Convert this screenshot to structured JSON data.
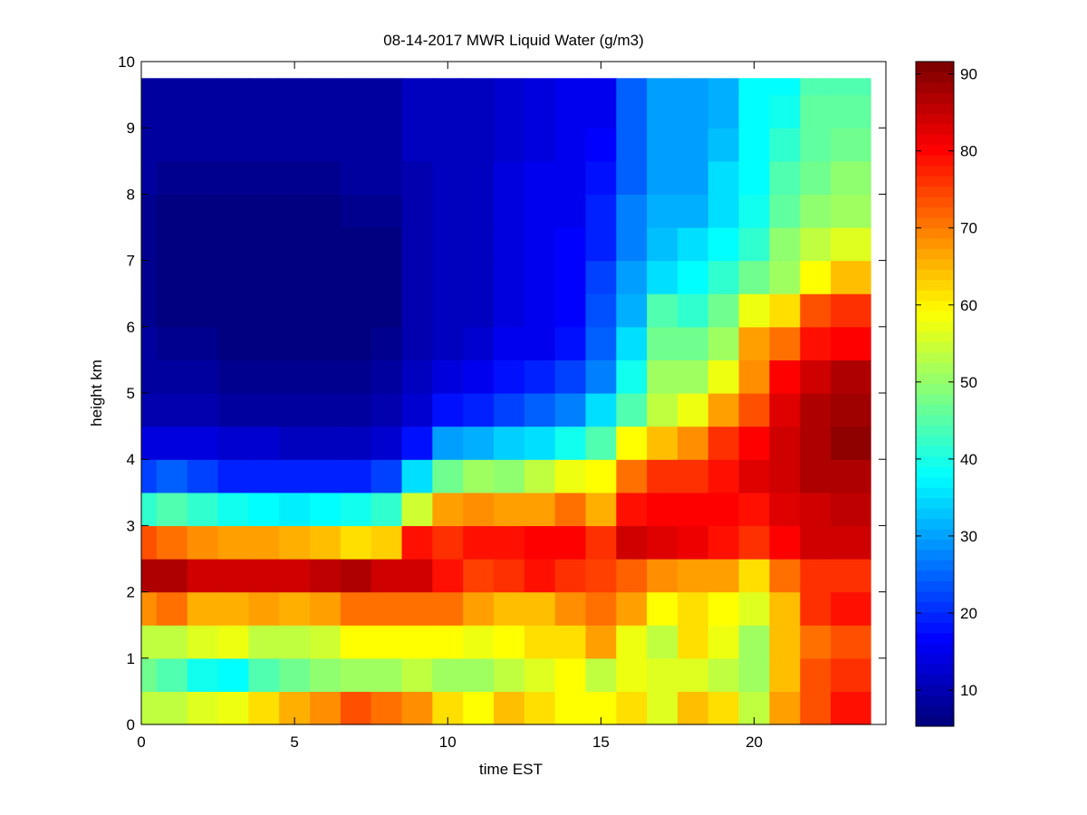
{
  "chart_data": {
    "type": "heatmap",
    "title": "08-14-2017 MWR Liquid Water (g/m3)",
    "xlabel": "time EST",
    "ylabel": "height km",
    "xlim": [
      0,
      24.3
    ],
    "ylim": [
      0,
      10
    ],
    "xticks": [
      0,
      5,
      10,
      15,
      20
    ],
    "yticks": [
      0,
      1,
      2,
      3,
      4,
      5,
      6,
      7,
      8,
      9,
      10
    ],
    "colormap": "jet",
    "clim": [
      5.3,
      91.6
    ],
    "colorbar_ticks": [
      10,
      20,
      30,
      40,
      50,
      60,
      70,
      80,
      90
    ],
    "grid": false,
    "x_centers": [
      0,
      1,
      2,
      3,
      4,
      5,
      6,
      7,
      8,
      9,
      10,
      11,
      12,
      13,
      14,
      15,
      16,
      17,
      18,
      19,
      20,
      21,
      22,
      23
    ],
    "y_row_bottoms": [
      0,
      0.5,
      1,
      1.5,
      2,
      2.5,
      3,
      3.5,
      4,
      4.5,
      5,
      5.5,
      6,
      6.5,
      7,
      7.5,
      8,
      8.5,
      9,
      9.5
    ],
    "y_top": 9.75,
    "values_by_time": [
      [
        55,
        48,
        55,
        70,
        88,
        75,
        42,
        22,
        14,
        10,
        9,
        8,
        7,
        7,
        7,
        7,
        8,
        8,
        8,
        8
      ],
      [
        55,
        45,
        55,
        72,
        88,
        72,
        45,
        25,
        14,
        10,
        8,
        7,
        6,
        6,
        6,
        6,
        7,
        8,
        8,
        8
      ],
      [
        57,
        40,
        57,
        66,
        86,
        70,
        42,
        22,
        14,
        10,
        8,
        7,
        6,
        6,
        6,
        6,
        7,
        8,
        8,
        8
      ],
      [
        58,
        38,
        58,
        66,
        86,
        68,
        40,
        20,
        13,
        9,
        7,
        6,
        5,
        5,
        5,
        6,
        7,
        8,
        8,
        8
      ],
      [
        62,
        45,
        55,
        68,
        85,
        68,
        38,
        20,
        13,
        9,
        7,
        6,
        5,
        5,
        5,
        6,
        7,
        8,
        8,
        8
      ],
      [
        66,
        48,
        55,
        67,
        85,
        66,
        37,
        20,
        12,
        9,
        7,
        6,
        5,
        5,
        6,
        6,
        7,
        8,
        8,
        8
      ],
      [
        70,
        50,
        56,
        68,
        87,
        65,
        38,
        19,
        12,
        9,
        7,
        6,
        5,
        5,
        6,
        6,
        7,
        8,
        8,
        8
      ],
      [
        75,
        52,
        60,
        72,
        88,
        62,
        40,
        19,
        12,
        9,
        7,
        6,
        6,
        6,
        6,
        7,
        8,
        8,
        8,
        8
      ],
      [
        72,
        52,
        60,
        72,
        86,
        64,
        42,
        22,
        13,
        10,
        8,
        7,
        6,
        6,
        6,
        7,
        8,
        8,
        9,
        9
      ],
      [
        70,
        55,
        60,
        72,
        85,
        80,
        56,
        36,
        18,
        13,
        11,
        10,
        10,
        10,
        10,
        10,
        10,
        11,
        11,
        11
      ],
      [
        62,
        52,
        60,
        72,
        80,
        78,
        68,
        48,
        30,
        18,
        14,
        12,
        12,
        12,
        12,
        12,
        12,
        12,
        12,
        12
      ],
      [
        60,
        52,
        58,
        68,
        76,
        80,
        70,
        52,
        32,
        20,
        15,
        13,
        12,
        12,
        12,
        12,
        12,
        12,
        12,
        12
      ],
      [
        65,
        55,
        60,
        65,
        78,
        80,
        68,
        50,
        34,
        22,
        18,
        15,
        14,
        14,
        14,
        14,
        14,
        13,
        13,
        13
      ],
      [
        62,
        57,
        62,
        65,
        80,
        82,
        68,
        55,
        36,
        25,
        20,
        16,
        16,
        15,
        15,
        15,
        15,
        14,
        14,
        14
      ],
      [
        60,
        60,
        62,
        70,
        78,
        82,
        72,
        58,
        40,
        28,
        22,
        18,
        17,
        17,
        17,
        16,
        16,
        15,
        15,
        15
      ],
      [
        60,
        55,
        68,
        72,
        76,
        78,
        66,
        60,
        45,
        36,
        28,
        25,
        24,
        22,
        20,
        19,
        18,
        17,
        16,
        16
      ],
      [
        62,
        58,
        58,
        68,
        74,
        85,
        80,
        72,
        60,
        45,
        40,
        35,
        32,
        30,
        28,
        27,
        25,
        25,
        25,
        25
      ],
      [
        57,
        57,
        55,
        60,
        70,
        84,
        82,
        78,
        65,
        55,
        52,
        48,
        45,
        35,
        33,
        31,
        30,
        30,
        30,
        30
      ],
      [
        65,
        57,
        62,
        62,
        68,
        83,
        82,
        78,
        70,
        58,
        52,
        48,
        42,
        38,
        35,
        32,
        30,
        30,
        30,
        30
      ],
      [
        62,
        55,
        58,
        60,
        68,
        80,
        82,
        80,
        78,
        68,
        58,
        52,
        48,
        42,
        38,
        36,
        35,
        33,
        32,
        32
      ],
      [
        55,
        52,
        52,
        57,
        62,
        78,
        80,
        84,
        82,
        75,
        70,
        68,
        58,
        48,
        42,
        40,
        38,
        38,
        38,
        38
      ],
      [
        68,
        65,
        65,
        65,
        72,
        82,
        84,
        86,
        86,
        84,
        82,
        72,
        62,
        52,
        50,
        47,
        45,
        42,
        40,
        38
      ],
      [
        75,
        75,
        72,
        78,
        78,
        85,
        86,
        88,
        88,
        88,
        85,
        80,
        75,
        60,
        55,
        50,
        48,
        47,
        46,
        45
      ],
      [
        80,
        78,
        75,
        80,
        78,
        85,
        87,
        88,
        91,
        90,
        88,
        82,
        78,
        65,
        57,
        52,
        50,
        48,
        46,
        45
      ]
    ]
  }
}
